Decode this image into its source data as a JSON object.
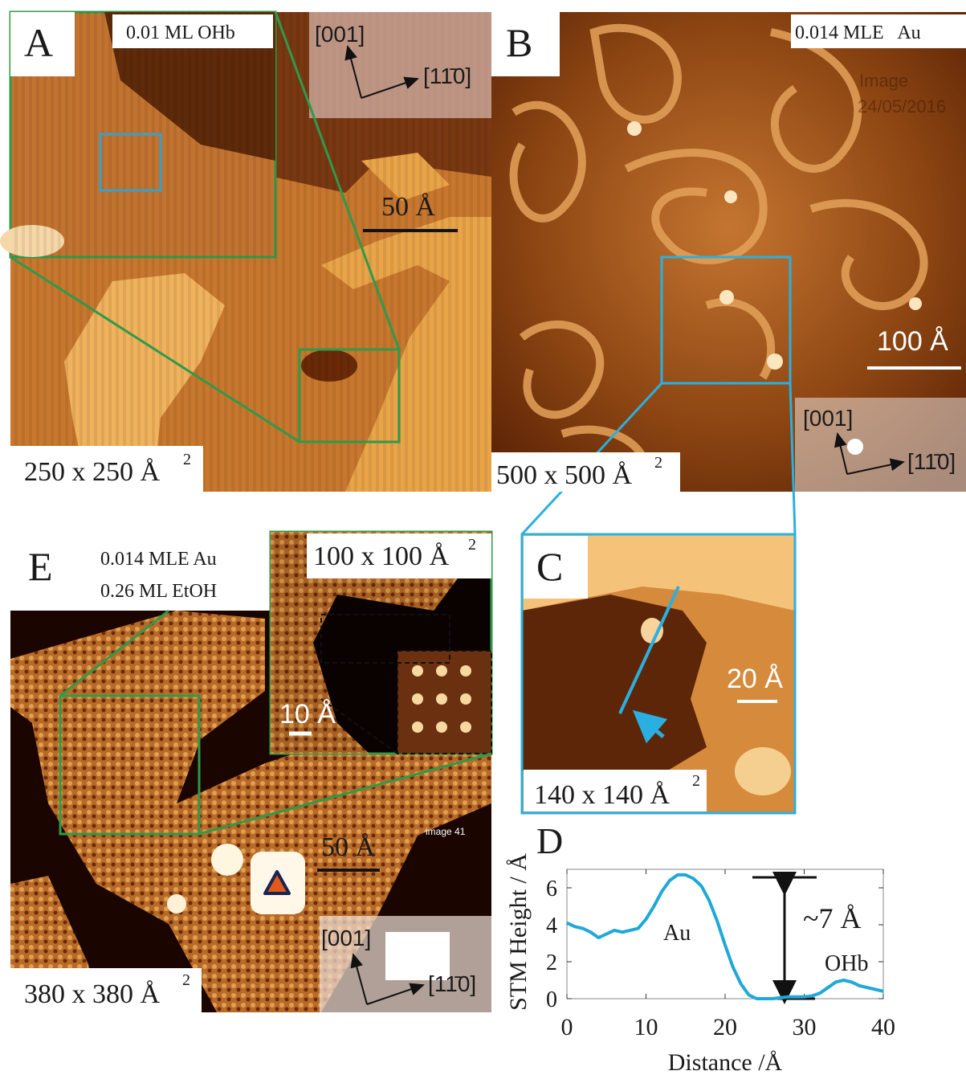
{
  "panels": {
    "A": {
      "letter": "A",
      "coverage": "0.01 ML OHb",
      "scale": "50 Å",
      "dir_y": "[001]",
      "dir_x": "[11̄0]",
      "size": "250 x 250 Å",
      "size_power": "2"
    },
    "B": {
      "letter": "B",
      "coverage": "0.014 MLE   Au",
      "watermark": [
        "Image",
        "24/05/2016"
      ],
      "scale": "100 Å",
      "dir_y": "[001]",
      "dir_x": "[11̄0]",
      "size": "500 x 500 Å",
      "size_power": "2"
    },
    "C": {
      "letter": "C",
      "scale": "20 Å",
      "size": "140 x 140 Å",
      "size_power": "2"
    },
    "E": {
      "letter": "E",
      "coverage": [
        "0.014 MLE Au",
        "0.26 ML EtOH"
      ],
      "inset_size": "100 x 100 Å",
      "inset_size_power": "2",
      "inset_scale": "10 Å",
      "scale": "50 Å",
      "image_note": "image 41",
      "dir_y": "[001]",
      "dir_x": "[11̄0]",
      "size": "380 x 380 Å",
      "size_power": "2"
    }
  },
  "chart_data": {
    "type": "line",
    "title": "D",
    "y_label": "STM Height / Å",
    "x_label": "Distance /Å",
    "annotations": [
      "Au",
      "~7 Å",
      "OHb"
    ],
    "xlim": [
      0,
      40
    ],
    "ylim": [
      0,
      7
    ],
    "xticks": [
      0,
      10,
      20,
      30,
      40
    ],
    "yticks": [
      0,
      2,
      4,
      6
    ],
    "series": [
      {
        "color": "#1fa8d8",
        "x": [
          0,
          1,
          2,
          3,
          4,
          5,
          6,
          7,
          8,
          9,
          10,
          11,
          12,
          13,
          14,
          15,
          16,
          17,
          18,
          19,
          20,
          21,
          22,
          23,
          24,
          25,
          26,
          27,
          28,
          29,
          30,
          31,
          32,
          33,
          34,
          35,
          36,
          37,
          38,
          39,
          40
        ],
        "values": [
          4.1,
          3.9,
          3.8,
          3.6,
          3.3,
          3.5,
          3.7,
          3.6,
          3.7,
          3.8,
          4.3,
          5.0,
          5.8,
          6.4,
          6.7,
          6.7,
          6.5,
          6.1,
          5.3,
          4.2,
          2.9,
          1.7,
          0.8,
          0.2,
          0.0,
          0.0,
          0.0,
          0.05,
          0.1,
          0.1,
          0.1,
          0.15,
          0.3,
          0.6,
          0.9,
          1.0,
          0.9,
          0.7,
          0.6,
          0.5,
          0.4
        ]
      }
    ]
  }
}
